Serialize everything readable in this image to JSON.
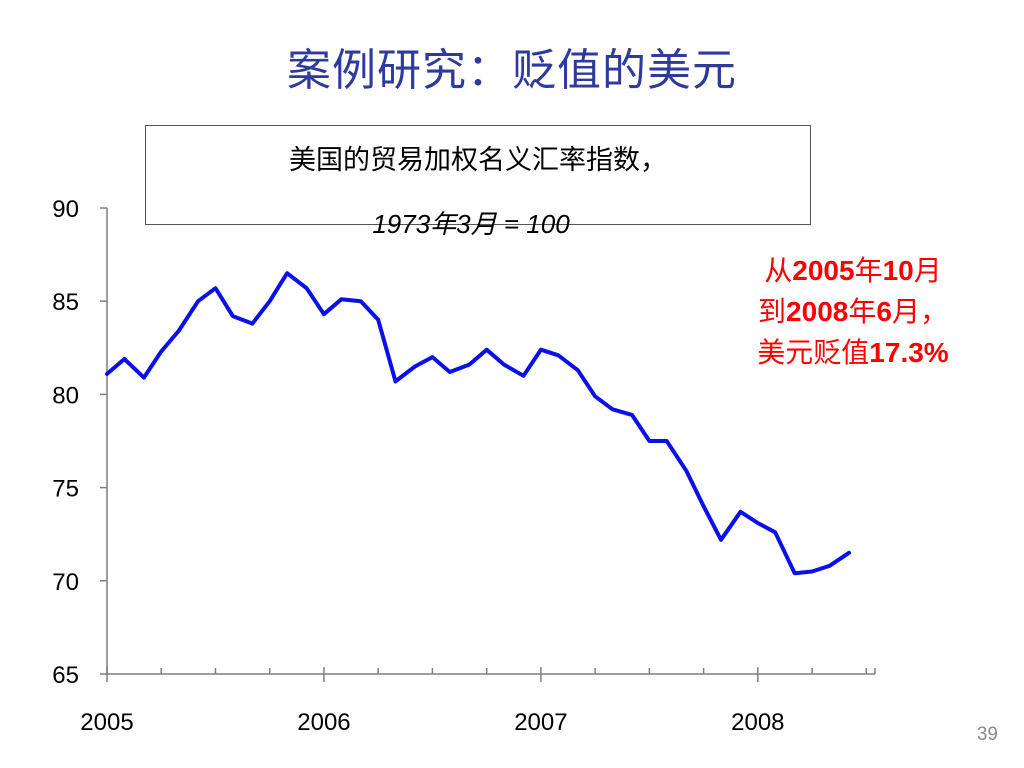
{
  "slide": {
    "title": "案例研究：贬值的美元",
    "page_number": "39"
  },
  "note_box": {
    "line1": "美国的贸易加权名义汇率指数，",
    "line2": "1973年3月 = 100"
  },
  "annotation": {
    "line1_prefix": "从",
    "line1_year": "2005",
    "line1_nian": "年",
    "line1_month": "10",
    "line1_yue": "月",
    "line2_prefix": "到",
    "line2_year": "2008",
    "line2_nian": "年",
    "line2_month": "6",
    "line2_yue": "月，",
    "line3_text": "美元贬值",
    "line3_value": "17.3%",
    "color": "#FF0000"
  },
  "chart_data": {
    "type": "line",
    "title": "",
    "xlabel": "",
    "ylabel": "",
    "ylim": [
      65,
      90
    ],
    "yticks": [
      65,
      70,
      75,
      80,
      85,
      90
    ],
    "xlim": [
      2005.0,
      2008.54
    ],
    "xticks": [
      2005,
      2006,
      2007,
      2008
    ],
    "minor_ticks_per_year": 4,
    "grid": false,
    "series": [
      {
        "color": "#0A10E8",
        "x": [
          2005.0,
          2005.08,
          2005.17,
          2005.25,
          2005.33,
          2005.42,
          2005.5,
          2005.58,
          2005.67,
          2005.75,
          2005.83,
          2005.92,
          2006.0,
          2006.08,
          2006.17,
          2006.25,
          2006.33,
          2006.42,
          2006.5,
          2006.58,
          2006.67,
          2006.75,
          2006.83,
          2006.92,
          2007.0,
          2007.08,
          2007.17,
          2007.25,
          2007.33,
          2007.42,
          2007.5,
          2007.58,
          2007.67,
          2007.75,
          2007.83,
          2007.92,
          2008.0,
          2008.08,
          2008.17,
          2008.25,
          2008.33,
          2008.42
        ],
        "y": [
          81.1,
          81.9,
          80.9,
          82.3,
          83.4,
          85.0,
          85.7,
          84.2,
          83.8,
          85.0,
          86.5,
          85.7,
          84.3,
          85.1,
          85.0,
          84.0,
          80.7,
          81.5,
          82.0,
          81.2,
          81.6,
          82.4,
          81.6,
          81.0,
          82.4,
          82.1,
          81.3,
          79.9,
          79.2,
          78.9,
          77.5,
          77.5,
          75.9,
          74.0,
          72.2,
          73.7,
          73.1,
          72.6,
          70.4,
          70.5,
          70.8,
          71.5
        ]
      }
    ]
  }
}
